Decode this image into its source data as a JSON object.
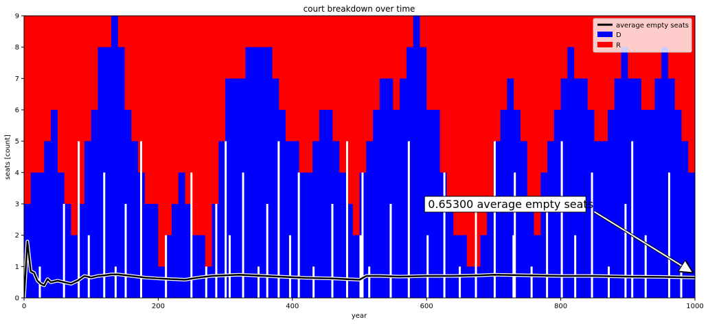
{
  "chart_data": {
    "type": "area",
    "title": "court breakdown over time",
    "xlabel": "year",
    "ylabel": "seats [count]",
    "xlim": [
      0,
      1000
    ],
    "ylim": [
      0,
      9
    ],
    "xticks": [
      0,
      200,
      400,
      600,
      800,
      1000
    ],
    "yticks": [
      0,
      1,
      2,
      3,
      4,
      5,
      6,
      7,
      8,
      9
    ],
    "legend_position": "top-right",
    "series": [
      {
        "name": "D",
        "kind": "stacked-area",
        "color": "#0000ff",
        "x": [
          0,
          10,
          20,
          30,
          40,
          50,
          60,
          70,
          80,
          90,
          100,
          110,
          120,
          130,
          140,
          150,
          160,
          170,
          180,
          190,
          200,
          210,
          220,
          230,
          240,
          250,
          260,
          270,
          280,
          290,
          300,
          310,
          320,
          330,
          340,
          350,
          360,
          370,
          380,
          390,
          400,
          410,
          420,
          430,
          440,
          450,
          460,
          470,
          480,
          490,
          500,
          510,
          520,
          530,
          540,
          550,
          560,
          570,
          580,
          590,
          600,
          610,
          620,
          630,
          640,
          650,
          660,
          670,
          680,
          690,
          700,
          710,
          720,
          730,
          740,
          750,
          760,
          770,
          780,
          790,
          800,
          810,
          820,
          830,
          840,
          850,
          860,
          870,
          880,
          890,
          900,
          910,
          920,
          930,
          940,
          950,
          960,
          970,
          980,
          990,
          1000
        ],
        "values": [
          3,
          4,
          4,
          5,
          6,
          4,
          3,
          2,
          3,
          5,
          6,
          8,
          8,
          9,
          8,
          6,
          5,
          4,
          3,
          3,
          1,
          2,
          3,
          4,
          3,
          2,
          2,
          1,
          3,
          5,
          7,
          7,
          7,
          8,
          8,
          8,
          8,
          7,
          6,
          5,
          5,
          4,
          4,
          5,
          6,
          6,
          5,
          4,
          3,
          2,
          4,
          5,
          6,
          7,
          7,
          6,
          7,
          8,
          9,
          8,
          6,
          6,
          4,
          3,
          2,
          2,
          1,
          1,
          2,
          3,
          5,
          6,
          7,
          6,
          5,
          3,
          2,
          4,
          5,
          6,
          7,
          8,
          7,
          7,
          6,
          5,
          5,
          6,
          7,
          8,
          7,
          7,
          6,
          6,
          7,
          8,
          7,
          6,
          5,
          4,
          5
        ]
      },
      {
        "name": "R",
        "kind": "stacked-area",
        "color": "#ff0000",
        "x": [
          0,
          1000
        ],
        "values": [
          9,
          9
        ]
      },
      {
        "name": "average empty seats",
        "kind": "line",
        "color": "#000000",
        "x": [
          0,
          5,
          10,
          15,
          20,
          25,
          30,
          35,
          40,
          50,
          60,
          70,
          80,
          90,
          100,
          110,
          120,
          130,
          140,
          160,
          180,
          200,
          220,
          240,
          260,
          280,
          300,
          320,
          340,
          360,
          380,
          400,
          420,
          440,
          460,
          480,
          500,
          510,
          530,
          560,
          600,
          640,
          680,
          700,
          750,
          800,
          850,
          900,
          950,
          1000
        ],
        "values": [
          0.0,
          1.8,
          0.85,
          0.8,
          0.55,
          0.45,
          0.4,
          0.6,
          0.5,
          0.55,
          0.5,
          0.45,
          0.55,
          0.7,
          0.65,
          0.7,
          0.72,
          0.75,
          0.75,
          0.7,
          0.65,
          0.62,
          0.6,
          0.58,
          0.65,
          0.7,
          0.72,
          0.74,
          0.72,
          0.7,
          0.68,
          0.66,
          0.64,
          0.63,
          0.62,
          0.6,
          0.58,
          0.7,
          0.7,
          0.68,
          0.7,
          0.7,
          0.72,
          0.74,
          0.72,
          0.7,
          0.7,
          0.68,
          0.67,
          0.65
        ]
      }
    ],
    "empty_gaps_x": [
      22,
      58,
      80,
      95,
      118,
      135,
      150,
      173,
      210,
      248,
      270,
      285,
      299,
      305,
      325,
      348,
      361,
      378,
      395,
      408,
      430,
      458,
      480,
      500,
      503,
      513,
      545,
      572,
      600,
      625,
      648,
      672,
      700,
      728,
      730,
      755,
      778,
      800,
      820,
      845,
      870,
      895,
      905,
      925,
      960,
      978
    ],
    "annotation": {
      "text": "0.65300 average empty seats",
      "text_x": 600,
      "text_y": 3.0,
      "arrow_to_x": 1000,
      "arrow_to_y": 0.78
    }
  }
}
